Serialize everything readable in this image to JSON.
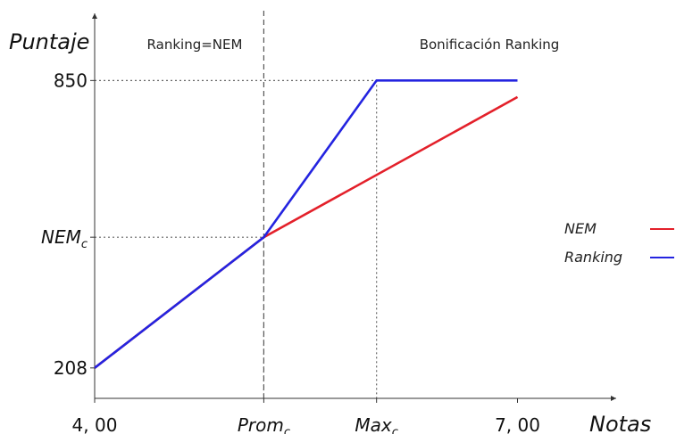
{
  "chart_data": {
    "type": "line",
    "xlabel": "Notas",
    "ylabel": "Puntaje",
    "x_ticks": [
      {
        "value": 4.0,
        "label": "4, 00",
        "sub": ""
      },
      {
        "value": 5.2,
        "label": "Prom",
        "sub": "c"
      },
      {
        "value": 6.0,
        "label": "Max",
        "sub": "c"
      },
      {
        "value": 7.0,
        "label": "7, 00",
        "sub": ""
      }
    ],
    "y_ticks": [
      {
        "value": 208,
        "label": "208",
        "sub": ""
      },
      {
        "value": 500,
        "label": "NEM",
        "sub": "c"
      },
      {
        "value": 850,
        "label": "850",
        "sub": ""
      }
    ],
    "xlim": [
      4.0,
      7.7
    ],
    "ylim": [
      140,
      1000
    ],
    "regions": [
      {
        "label": "Ranking=NEM"
      },
      {
        "label": "Bonificación Ranking"
      }
    ],
    "guides": {
      "vertical_dashed_at_x": 5.2,
      "dotted_vertical_at_x": [
        5.2,
        6.0
      ],
      "dotted_horizontal_at_y": [
        850,
        500
      ]
    },
    "legend_position": "right",
    "series": [
      {
        "name": "NEM",
        "color": "#e3202a",
        "points": [
          [
            4.0,
            208
          ],
          [
            5.2,
            500
          ],
          [
            7.0,
            813
          ]
        ]
      },
      {
        "name": "Ranking",
        "color": "#2424e0",
        "points": [
          [
            4.0,
            208
          ],
          [
            5.2,
            500
          ],
          [
            6.0,
            850
          ],
          [
            7.0,
            850
          ]
        ]
      }
    ]
  }
}
